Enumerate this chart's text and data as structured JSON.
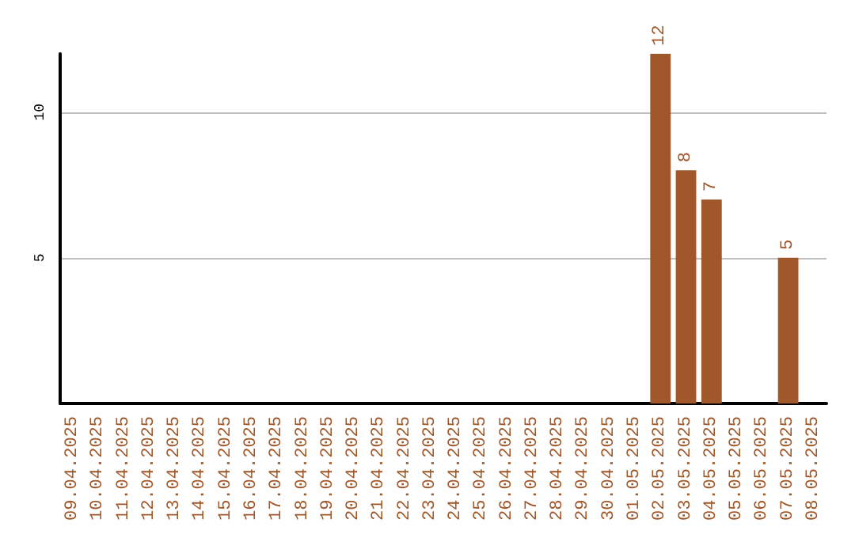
{
  "chart_data": {
    "type": "bar",
    "categories": [
      "09.04.2025",
      "10.04.2025",
      "11.04.2025",
      "12.04.2025",
      "13.04.2025",
      "14.04.2025",
      "15.04.2025",
      "16.04.2025",
      "17.04.2025",
      "18.04.2025",
      "19.04.2025",
      "20.04.2025",
      "21.04.2025",
      "22.04.2025",
      "23.04.2025",
      "24.04.2025",
      "25.04.2025",
      "26.04.2025",
      "27.04.2025",
      "28.04.2025",
      "29.04.2025",
      "30.04.2025",
      "01.05.2025",
      "02.05.2025",
      "03.05.2025",
      "04.05.2025",
      "05.05.2025",
      "06.05.2025",
      "07.05.2025",
      "08.05.2025"
    ],
    "values": [
      0,
      0,
      0,
      0,
      0,
      0,
      0,
      0,
      0,
      0,
      0,
      0,
      0,
      0,
      0,
      0,
      0,
      0,
      0,
      0,
      0,
      0,
      0,
      12,
      8,
      7,
      0,
      0,
      5,
      0
    ],
    "value_labels": [
      null,
      null,
      null,
      null,
      null,
      null,
      null,
      null,
      null,
      null,
      null,
      null,
      null,
      null,
      null,
      null,
      null,
      null,
      null,
      null,
      null,
      null,
      null,
      "12",
      "8",
      "7",
      null,
      null,
      "5",
      null
    ],
    "color": "#a0582a",
    "ylim": [
      0,
      12
    ],
    "yticks": [
      5,
      10
    ],
    "grid": "y"
  }
}
